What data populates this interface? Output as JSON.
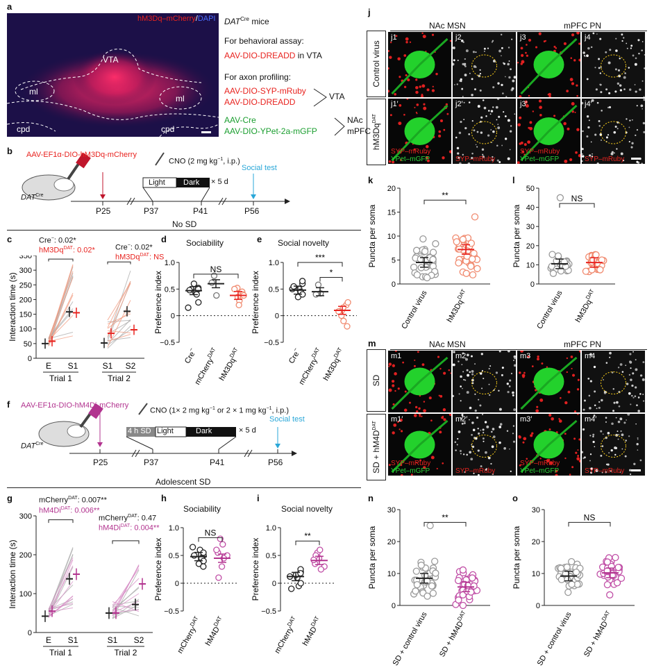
{
  "panel_letters": {
    "a": "a",
    "b": "b",
    "c": "c",
    "d": "d",
    "e": "e",
    "f": "f",
    "g": "g",
    "h": "h",
    "i": "i",
    "j": "j",
    "k": "k",
    "l": "l",
    "m": "m",
    "n": "n",
    "o": "o"
  },
  "a": {
    "legend_red": "hM3Dq–mCherry",
    "legend_slash": "/",
    "legend_blue": "DAPI",
    "regions": {
      "vta": "VTA",
      "ml": "ml",
      "cpd": "cpd"
    },
    "mice_line": "DAT",
    "mice_sup": "Cre",
    "mice_rest": " mice",
    "behav": "For behavioral assay:",
    "behav_virus": "AAV-DIO-DREADD",
    "behav_in": " in VTA",
    "axon": "For axon profiling:",
    "ax1": "AAV-DIO-SYP-mRuby",
    "ax2": "AAV-DIO-DREADD",
    "ax_target1": "VTA",
    "ax3": "AAV-Cre",
    "ax4": "AAV-DIO-YPet-2a-mGFP",
    "ax_target2a": "NAc",
    "ax_target2b": "mPFC"
  },
  "b": {
    "virus": "AAV-EF1α-DIO-hM3Dq-mCherry",
    "mouse": "DAT",
    "mouse_sup": "Cre",
    "cno": "CNO (2 mg kg",
    "cno_sup": "−1",
    "cno_rest": ", i.p.)",
    "light": "Light",
    "dark": "Dark",
    "times": "× 5 d",
    "social": "Social test",
    "p25": "P25",
    "p37": "P37",
    "p41": "P41",
    "p56": "P56",
    "header": "No SD"
  },
  "c": {
    "stat1a": "Cre",
    "stat1b": ": 0.02*",
    "stat2a": "hM3Dq",
    "stat2sup": "DAT",
    "stat2b": ": 0.02*",
    "stat3a": "Cre",
    "stat3b": ": 0.02*",
    "stat4a": "hM3Dq",
    "stat4sup": "DAT",
    "stat4b": ": NS",
    "ylabel": "Interaction time (s)",
    "yticks": [
      "0",
      "50",
      "100",
      "150",
      "200",
      "250",
      "300",
      "350"
    ],
    "xticks": [
      "E",
      "S1",
      "S1",
      "S2"
    ],
    "trial1": "Trial 1",
    "trial2": "Trial 2"
  },
  "d": {
    "title": "Sociability",
    "ns": "NS",
    "ylabel": "Preference index",
    "yticks": [
      "−0.5",
      "0",
      "0.5",
      "1.0"
    ],
    "xlabels": [
      "Cre",
      "mCherry",
      "hM3Dq"
    ]
  },
  "e": {
    "title": "Social novelty",
    "s3": "***",
    "s1": "*",
    "ylabel": "Preference index",
    "yticks": [
      "−0.5",
      "0",
      "0.5",
      "1.0"
    ],
    "xlabels": [
      "Cre",
      "mCherry",
      "hM3Dq"
    ]
  },
  "f": {
    "virus": "AAV-EF1α-DIO-hM4Di-mCherry",
    "mouse": "DAT",
    "mouse_sup": "Cre",
    "cno": "CNO (1× 2 mg kg",
    "cno_sup": "−1",
    "cno_mid": " or 2 × 1 mg kg",
    "cno_sup2": "−1",
    "cno_rest": ", i.p.)",
    "sd": "4 h SD",
    "light": "Light",
    "dark": "Dark",
    "times": "× 5 d",
    "social": "Social test",
    "p25": "P25",
    "p37": "P37",
    "p41": "P41",
    "p56": "P56",
    "header": "Adolescent SD"
  },
  "g": {
    "stat1": "mCherry",
    "stat1sup": "DAT",
    "stat1b": ": 0.007**",
    "stat2": "hM4Di",
    "stat2sup": "DAT",
    "stat2b": ": 0.006**",
    "stat3": "mCherry",
    "stat3sup": "DAT",
    "stat3b": ": 0.47",
    "stat4": "hM4Di",
    "stat4sup": "DAT",
    "stat4b": ": 0.004**",
    "ylabel": "Interaction time (s)",
    "yticks": [
      "0",
      "100",
      "200",
      "300"
    ],
    "xticks": [
      "E",
      "S1",
      "S1",
      "S2"
    ],
    "trial1": "Trial 1",
    "trial2": "Trial 2"
  },
  "h": {
    "title": "Sociability",
    "ns": "NS",
    "ylabel": "Preference index",
    "yticks": [
      "−0.5",
      "0",
      "0.5",
      "1.0"
    ],
    "xlabels": [
      "mCherry",
      "hM4D"
    ]
  },
  "i": {
    "title": "Social novelty",
    "s": "**",
    "ylabel": "Preference index",
    "yticks": [
      "−0.5",
      "0",
      "0.5",
      "1.0"
    ],
    "xlabels": [
      "mCherry",
      "hM4D"
    ]
  },
  "j": {
    "col1": "NAc MSN",
    "col2": "mPFC PN",
    "row1": "Control virus",
    "row2": "hM3Dq",
    "row2sup": "DAT",
    "labels": [
      "j1",
      "j2",
      "j3",
      "j4",
      "j1′",
      "j2′",
      "j3′",
      "j4′"
    ],
    "syp": "SYP–mRuby",
    "ypet": "YPet–mGFP"
  },
  "k": {
    "s": "**",
    "ylabel": "Puncta per soma",
    "yticks": [
      "0",
      "5",
      "10",
      "15",
      "20"
    ],
    "xlabels": [
      "Control virus",
      "hM3Dq"
    ]
  },
  "l": {
    "s": "NS",
    "ylabel": "Puncta per soma",
    "yticks": [
      "0",
      "10",
      "20",
      "30",
      "40",
      "50"
    ],
    "xlabels": [
      "Control virus",
      "hM3Dq"
    ]
  },
  "m": {
    "col1": "NAc MSN",
    "col2": "mPFC PN",
    "row1": "SD",
    "row2": "SD + hM4D",
    "row2sup": "DAT",
    "labels": [
      "m1",
      "m2",
      "m3",
      "m4",
      "m1′",
      "m2′",
      "m3′",
      "m4′"
    ],
    "syp": "SYP–mRuby",
    "ypet": "YPet–mGFP"
  },
  "n": {
    "s": "**",
    "ylabel": "Puncta per soma",
    "yticks": [
      "0",
      "10",
      "20",
      "30"
    ],
    "xlabels": [
      "SD + control virus",
      "SD + hM4D"
    ]
  },
  "o": {
    "s": "NS",
    "ylabel": "Puncta per soma",
    "yticks": [
      "0",
      "10",
      "20",
      "30"
    ],
    "xlabels": [
      "SD + control virus",
      "SD + hM4D"
    ]
  },
  "sup_dat": "DAT",
  "sup_minus": "−",
  "chart_data": [
    {
      "type": "scatter",
      "panel": "d",
      "categories": [
        "Cre−",
        "mCherry DAT",
        "hM3Dq DAT"
      ],
      "means": [
        0.47,
        0.6,
        0.38
      ],
      "ylim": [
        -0.5,
        1.0
      ],
      "colors": [
        "#222222",
        "#777777",
        "#f08a6f"
      ]
    },
    {
      "type": "scatter",
      "panel": "e",
      "categories": [
        "Cre−",
        "mCherry DAT",
        "hM3Dq DAT"
      ],
      "means": [
        0.48,
        0.45,
        0.1
      ],
      "ylim": [
        -0.5,
        1.0
      ],
      "colors": [
        "#222222",
        "#777777",
        "#f08a6f"
      ]
    },
    {
      "type": "scatter",
      "panel": "h",
      "categories": [
        "mCherry DAT",
        "hM4D DAT"
      ],
      "means": [
        0.48,
        0.45
      ],
      "ylim": [
        -0.5,
        1.0
      ],
      "colors": [
        "#222222",
        "#c04ea6"
      ]
    },
    {
      "type": "scatter",
      "panel": "i",
      "categories": [
        "mCherry DAT",
        "hM4D DAT"
      ],
      "means": [
        0.12,
        0.41
      ],
      "ylim": [
        -0.5,
        1.0
      ],
      "colors": [
        "#222222",
        "#c04ea6"
      ]
    },
    {
      "type": "scatter",
      "panel": "k",
      "categories": [
        "Control virus",
        "hM3Dq DAT"
      ],
      "means": [
        4.5,
        7.2
      ],
      "ylim": [
        0,
        20
      ],
      "colors": [
        "#999999",
        "#f08a6f"
      ]
    },
    {
      "type": "scatter",
      "panel": "l",
      "categories": [
        "Control virus",
        "hM3Dq DAT"
      ],
      "means": [
        10.5,
        11.2
      ],
      "ylim": [
        0,
        50
      ],
      "colors": [
        "#999999",
        "#f08a6f"
      ]
    },
    {
      "type": "scatter",
      "panel": "n",
      "categories": [
        "SD + control virus",
        "SD + hM4D DAT"
      ],
      "means": [
        8.5,
        5.8
      ],
      "ylim": [
        0,
        30
      ],
      "colors": [
        "#999999",
        "#c04ea6"
      ]
    },
    {
      "type": "scatter",
      "panel": "o",
      "categories": [
        "SD + control virus",
        "SD + hM4D DAT"
      ],
      "means": [
        9.2,
        10.2
      ],
      "ylim": [
        0,
        30
      ],
      "colors": [
        "#999999",
        "#c04ea6"
      ]
    },
    {
      "type": "line",
      "panel": "c",
      "x": [
        "E",
        "S1",
        "S1",
        "S2"
      ],
      "series": [
        {
          "values": [
            50,
            158,
            52,
            160
          ]
        },
        {
          "values": [
            58,
            155,
            85,
            97
          ]
        }
      ],
      "ylim": [
        0,
        350
      ]
    },
    {
      "type": "line",
      "panel": "g",
      "x": [
        "E",
        "S1",
        "S1",
        "S2"
      ],
      "series": [
        {
          "values": [
            42,
            138,
            50,
            72
          ]
        },
        {
          "values": [
            55,
            150,
            50,
            125
          ]
        }
      ],
      "ylim": [
        0,
        300
      ]
    }
  ]
}
